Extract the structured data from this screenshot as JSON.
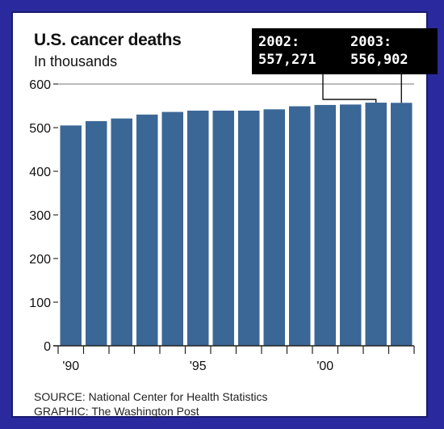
{
  "source": "SOURCE: National Center for Health Statistics",
  "credit": "GRAPHIC: The Washington Post",
  "colors": {
    "frame": "#2a2a9e",
    "bar": "#3b6796",
    "text": "#111111",
    "callout_bg": "#000000"
  },
  "callouts": [
    {
      "label": "2002:",
      "value": "557,271",
      "year": 2002
    },
    {
      "label": "2003:",
      "value": "556,902",
      "year": 2003
    }
  ],
  "chart_data": {
    "type": "bar",
    "title": "U.S. cancer deaths",
    "subtitle": "In thousands",
    "xlabel": "",
    "ylabel": "",
    "categories": [
      "1990",
      "1991",
      "1992",
      "1993",
      "1994",
      "1995",
      "1996",
      "1997",
      "1998",
      "1999",
      "2000",
      "2001",
      "2002",
      "2003"
    ],
    "x_tick_labels": [
      {
        "category": "1990",
        "label": "'90"
      },
      {
        "category": "1995",
        "label": "'95"
      },
      {
        "category": "2000",
        "label": "'00"
      }
    ],
    "series": [
      {
        "values": [
          505,
          515,
          521,
          530,
          536,
          539,
          539,
          539,
          542,
          549,
          552,
          553,
          557.271,
          556.902
        ]
      }
    ],
    "ylim": [
      0,
      600
    ],
    "yticks": [
      0,
      100,
      200,
      300,
      400,
      500,
      600
    ],
    "grid": "horizontal-ticks-only",
    "legend": "none"
  }
}
